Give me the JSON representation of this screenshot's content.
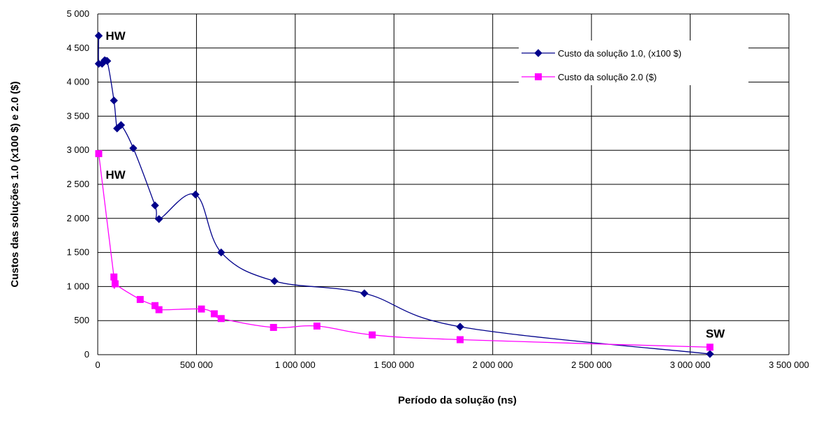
{
  "chart_data": {
    "type": "line",
    "title": "",
    "xlabel": "Período da solução (ns)",
    "ylabel": "Custos das soluções 1.0 (x100 $) e 2.0 ($)",
    "xlim": [
      0,
      3500000
    ],
    "ylim": [
      0,
      5000
    ],
    "x_ticks": [
      0,
      500000,
      1000000,
      1500000,
      2000000,
      2500000,
      3000000,
      3500000
    ],
    "x_tick_labels": [
      "0",
      "500 000",
      "1 000 000",
      "1 500 000",
      "2 000 000",
      "2 500 000",
      "3 000 000",
      "3 500 000"
    ],
    "y_ticks": [
      0,
      500,
      1000,
      1500,
      2000,
      2500,
      3000,
      3500,
      4000,
      4500,
      5000
    ],
    "y_tick_labels": [
      "0",
      "500",
      "1 000",
      "1 500",
      "2 000",
      "2 500",
      "3 000",
      "3 500",
      "4 000",
      "4 500",
      "5 000"
    ],
    "grid": true,
    "legend_position": "top-right",
    "series": [
      {
        "name": "Custo da solução 1.0, (x100 $)",
        "color": "#00008B",
        "marker": "diamond",
        "points": [
          [
            5000,
            4680
          ],
          [
            5000,
            4270
          ],
          [
            22000,
            4270
          ],
          [
            35000,
            4320
          ],
          [
            48000,
            4310
          ],
          [
            82000,
            3730
          ],
          [
            98000,
            3320
          ],
          [
            118000,
            3370
          ],
          [
            180000,
            3030
          ],
          [
            290000,
            2190
          ],
          [
            310000,
            1990
          ],
          [
            495000,
            2350
          ],
          [
            625000,
            1500
          ],
          [
            895000,
            1080
          ],
          [
            1350000,
            900
          ],
          [
            1835000,
            410
          ],
          [
            3100000,
            10
          ]
        ]
      },
      {
        "name": "Custo da solução 2.0 ($)",
        "color": "#FF00FF",
        "marker": "square",
        "points": [
          [
            5000,
            2950
          ],
          [
            82000,
            1140
          ],
          [
            88000,
            1040
          ],
          [
            215000,
            810
          ],
          [
            290000,
            720
          ],
          [
            310000,
            660
          ],
          [
            525000,
            670
          ],
          [
            590000,
            600
          ],
          [
            625000,
            530
          ],
          [
            890000,
            400
          ],
          [
            1110000,
            420
          ],
          [
            1390000,
            290
          ],
          [
            1835000,
            220
          ],
          [
            3100000,
            110
          ]
        ]
      }
    ],
    "annotations": [
      {
        "text": "HW",
        "x": 5000,
        "y": 4680
      },
      {
        "text": "HW",
        "x": 5000,
        "y": 2950
      },
      {
        "text": "SW",
        "x": 3100000,
        "y": 110
      }
    ]
  }
}
